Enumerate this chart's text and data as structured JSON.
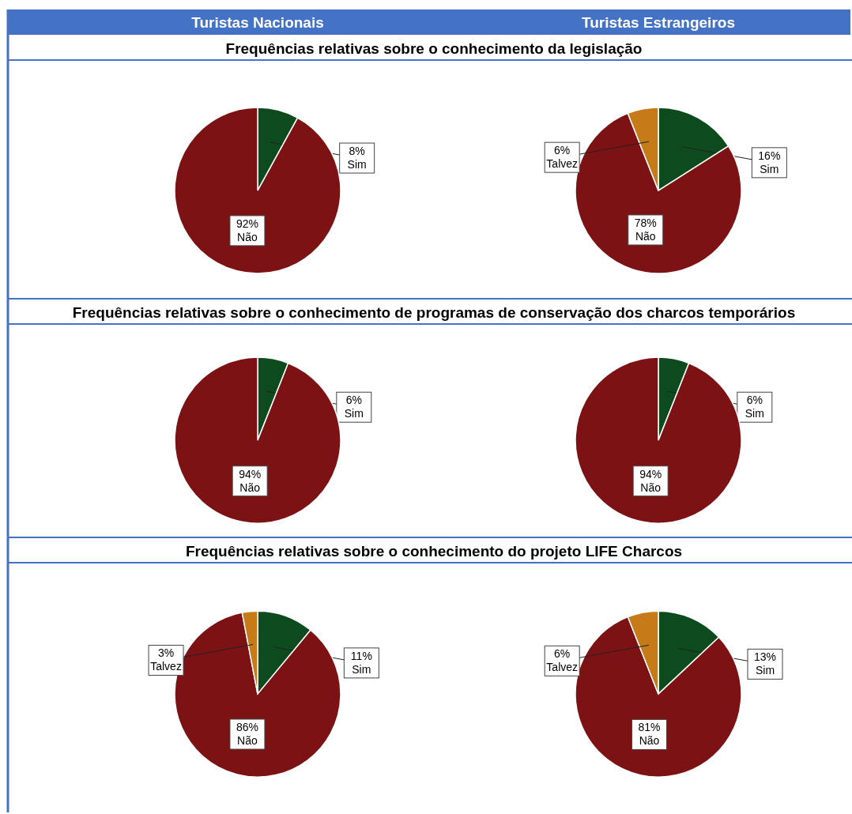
{
  "chart_data": [
    {
      "type": "pie",
      "title": "Turistas Nacionais",
      "subtitle": "Frequências relativas sobre o conhecimento da legislação",
      "categories": [
        "Sim",
        "Não"
      ],
      "values": [
        8,
        92
      ],
      "value_labels": [
        "8%",
        "92%"
      ],
      "colors": [
        "#0d4a1e",
        "#7d1214"
      ]
    },
    {
      "type": "pie",
      "title": "Turistas Estrangeiros",
      "categories": [
        "Sim",
        "Não",
        "Talvez"
      ],
      "values": [
        16,
        78,
        6
      ],
      "value_labels": [
        "16%",
        "78%",
        "6%"
      ],
      "colors": [
        "#0d4a1e",
        "#7d1214",
        "#c77a18"
      ]
    },
    {
      "type": "pie",
      "subtitle": "Frequências relativas sobre o conhecimento de programas de conservação dos charcos temporários",
      "categories": [
        "Sim",
        "Não"
      ],
      "values": [
        6,
        94
      ],
      "value_labels": [
        "6%",
        "94%"
      ],
      "colors": [
        "#0d4a1e",
        "#7d1214"
      ]
    },
    {
      "type": "pie",
      "categories": [
        "Sim",
        "Não"
      ],
      "values": [
        6,
        94
      ],
      "value_labels": [
        "6%",
        "94%"
      ],
      "colors": [
        "#0d4a1e",
        "#7d1214"
      ]
    },
    {
      "type": "pie",
      "subtitle": "Frequências relativas sobre o conhecimento do projeto LIFE Charcos",
      "categories": [
        "Sim",
        "Não",
        "Talvez"
      ],
      "values": [
        11,
        86,
        3
      ],
      "value_labels": [
        "11%",
        "86%",
        "3%"
      ],
      "colors": [
        "#0d4a1e",
        "#7d1214",
        "#c77a18"
      ]
    },
    {
      "type": "pie",
      "categories": [
        "Sim",
        "Não",
        "Talvez"
      ],
      "values": [
        13,
        81,
        6
      ],
      "value_labels": [
        "13%",
        "81%",
        "6%"
      ],
      "colors": [
        "#0d4a1e",
        "#7d1214",
        "#c77a18"
      ]
    }
  ]
}
